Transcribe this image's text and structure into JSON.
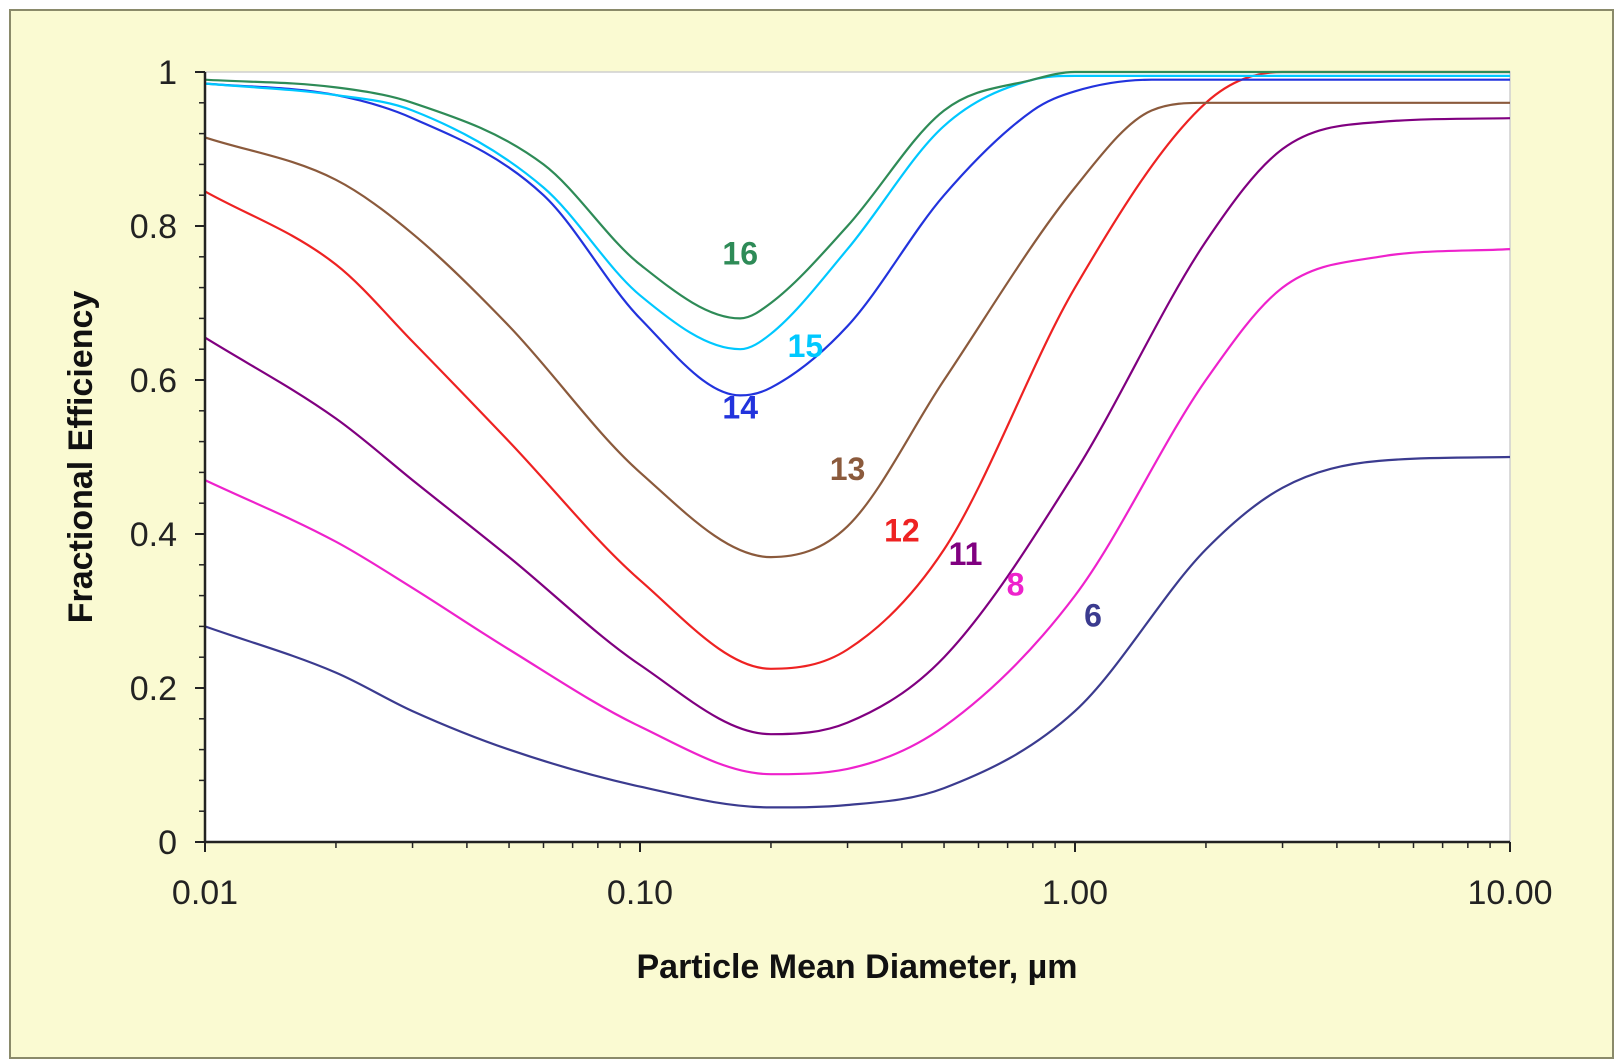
{
  "chart_data": {
    "type": "line",
    "title": "",
    "xlabel": "Particle Mean Diameter, µm",
    "ylabel": "Fractional Efficiency",
    "x_scale": "log",
    "xlim": [
      0.01,
      10
    ],
    "ylim": [
      0,
      1
    ],
    "x_ticks": [
      {
        "value": 0.01,
        "label": "0.01"
      },
      {
        "value": 0.1,
        "label": "0.10"
      },
      {
        "value": 1,
        "label": "1.00"
      },
      {
        "value": 10,
        "label": "10.00"
      }
    ],
    "y_ticks": [
      {
        "value": 0,
        "label": "0"
      },
      {
        "value": 0.2,
        "label": "0.2"
      },
      {
        "value": 0.4,
        "label": "0.4"
      },
      {
        "value": 0.6,
        "label": "0.6"
      },
      {
        "value": 0.8,
        "label": "0.8"
      },
      {
        "value": 1,
        "label": "1"
      }
    ],
    "grid": false,
    "legend": "none",
    "plot_background": "#ffffff",
    "figure_background": "#fafad2",
    "series": [
      {
        "name": "16",
        "color": "#2e8b57",
        "label_at": [
          0.17,
          0.75
        ],
        "x": [
          0.01,
          0.02,
          0.03,
          0.06,
          0.1,
          0.17,
          0.2,
          0.3,
          0.5,
          0.8,
          1,
          2,
          10
        ],
        "y": [
          0.99,
          0.98,
          0.96,
          0.88,
          0.75,
          0.68,
          0.7,
          0.8,
          0.95,
          0.99,
          1.0,
          1.0,
          1.0
        ]
      },
      {
        "name": "15",
        "color": "#00c8ff",
        "label_at": [
          0.24,
          0.63
        ],
        "x": [
          0.01,
          0.02,
          0.03,
          0.06,
          0.1,
          0.17,
          0.2,
          0.3,
          0.5,
          0.8,
          1,
          2,
          10
        ],
        "y": [
          0.985,
          0.97,
          0.95,
          0.85,
          0.71,
          0.64,
          0.66,
          0.77,
          0.93,
          0.99,
          0.995,
          0.995,
          0.995
        ]
      },
      {
        "name": "14",
        "color": "#2233dd",
        "label_at": [
          0.17,
          0.55
        ],
        "x": [
          0.01,
          0.02,
          0.03,
          0.06,
          0.1,
          0.17,
          0.2,
          0.3,
          0.5,
          0.8,
          1,
          1.5,
          10
        ],
        "y": [
          0.985,
          0.97,
          0.94,
          0.84,
          0.68,
          0.58,
          0.59,
          0.67,
          0.84,
          0.95,
          0.975,
          0.99,
          0.99
        ]
      },
      {
        "name": "13",
        "color": "#8b5a3c",
        "label_at": [
          0.3,
          0.47
        ],
        "x": [
          0.01,
          0.02,
          0.03,
          0.05,
          0.1,
          0.2,
          0.3,
          0.5,
          1,
          1.5,
          2,
          10
        ],
        "y": [
          0.915,
          0.86,
          0.79,
          0.67,
          0.48,
          0.37,
          0.41,
          0.6,
          0.85,
          0.95,
          0.96,
          0.96
        ]
      },
      {
        "name": "12",
        "color": "#ee2222",
        "label_at": [
          0.4,
          0.39
        ],
        "x": [
          0.01,
          0.02,
          0.03,
          0.05,
          0.1,
          0.2,
          0.3,
          0.5,
          1,
          2,
          3,
          10
        ],
        "y": [
          0.845,
          0.75,
          0.65,
          0.52,
          0.34,
          0.225,
          0.25,
          0.38,
          0.72,
          0.96,
          1.0,
          1.0
        ]
      },
      {
        "name": "11",
        "color": "#800080",
        "label_at": [
          0.56,
          0.36
        ],
        "x": [
          0.01,
          0.02,
          0.03,
          0.05,
          0.1,
          0.2,
          0.3,
          0.5,
          1,
          2,
          3,
          5,
          10
        ],
        "y": [
          0.655,
          0.55,
          0.47,
          0.37,
          0.23,
          0.14,
          0.155,
          0.24,
          0.48,
          0.78,
          0.9,
          0.935,
          0.94
        ]
      },
      {
        "name": "8",
        "color": "#ee22cc",
        "label_at": [
          0.73,
          0.32
        ],
        "x": [
          0.01,
          0.02,
          0.03,
          0.05,
          0.1,
          0.2,
          0.3,
          0.5,
          1,
          2,
          3,
          5,
          10
        ],
        "y": [
          0.47,
          0.39,
          0.33,
          0.25,
          0.15,
          0.088,
          0.095,
          0.15,
          0.32,
          0.6,
          0.72,
          0.76,
          0.77
        ]
      },
      {
        "name": "6",
        "color": "#3b3b8f",
        "label_at": [
          1.1,
          0.28
        ],
        "x": [
          0.01,
          0.02,
          0.03,
          0.05,
          0.1,
          0.2,
          0.3,
          0.5,
          1,
          2,
          3,
          5,
          10
        ],
        "y": [
          0.28,
          0.22,
          0.17,
          0.12,
          0.072,
          0.045,
          0.048,
          0.07,
          0.17,
          0.38,
          0.46,
          0.495,
          0.5
        ]
      }
    ]
  }
}
